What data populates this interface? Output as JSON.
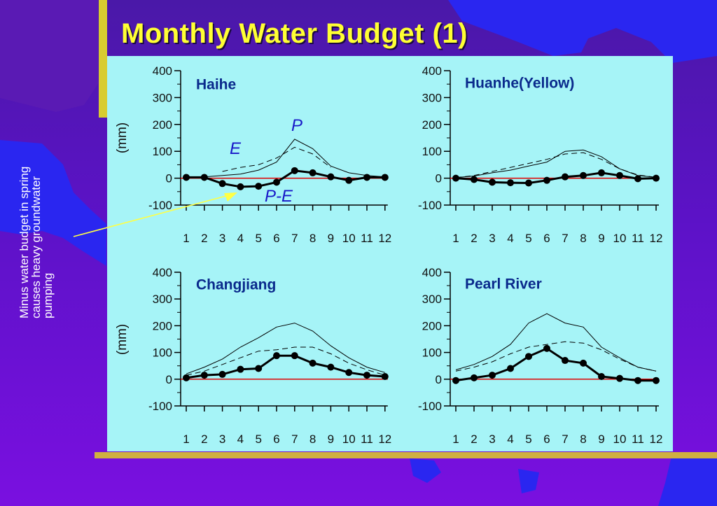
{
  "slide": {
    "title": "Monthly Water Budget (1)",
    "side_note": "Minus water budget in spring\ncauses heavy groundwater\npumping"
  },
  "colors": {
    "background": "#5d12c8",
    "chart_panel": "#a6f4f7",
    "title": "#ffff33",
    "zero_line": "#e00000",
    "annotation": "#1818c8",
    "panel_title": "#0a2a8c"
  },
  "chart_data": [
    {
      "type": "line",
      "title": "Haihe",
      "ylabel": "(mm)",
      "ylim": [
        -100,
        400
      ],
      "yticks": [
        400,
        300,
        200,
        100,
        0,
        -100
      ],
      "x": [
        1,
        2,
        3,
        4,
        5,
        6,
        7,
        8,
        9,
        10,
        11,
        12
      ],
      "annotations": [
        "P",
        "E",
        "P-E"
      ],
      "series": [
        {
          "name": "P",
          "style": "solid-thin",
          "values": [
            3,
            5,
            10,
            15,
            30,
            60,
            145,
            110,
            45,
            20,
            10,
            5
          ]
        },
        {
          "name": "E",
          "style": "dashed",
          "values": [
            null,
            null,
            25,
            40,
            50,
            75,
            115,
            90,
            40,
            null,
            null,
            null
          ]
        },
        {
          "name": "P-E",
          "style": "markers",
          "values": [
            3,
            3,
            -20,
            -32,
            -30,
            -15,
            28,
            20,
            5,
            -8,
            3,
            3
          ]
        }
      ]
    },
    {
      "type": "line",
      "title": "Huanhe(Yellow)",
      "ylim": [
        -100,
        400
      ],
      "yticks": [
        400,
        300,
        200,
        100,
        0,
        -100
      ],
      "x": [
        1,
        2,
        3,
        4,
        5,
        6,
        7,
        8,
        9,
        10,
        11,
        12
      ],
      "series": [
        {
          "style": "solid-thin",
          "values": [
            2,
            8,
            20,
            30,
            45,
            60,
            100,
            105,
            80,
            35,
            10,
            3
          ]
        },
        {
          "style": "dashed",
          "values": [
            2,
            10,
            25,
            40,
            55,
            70,
            90,
            95,
            70,
            35,
            12,
            3
          ]
        },
        {
          "style": "markers",
          "values": [
            0,
            -5,
            -15,
            -17,
            -18,
            -8,
            5,
            10,
            20,
            10,
            -2,
            0
          ]
        }
      ]
    },
    {
      "type": "line",
      "title": "Changjiang",
      "ylabel": "(mm)",
      "ylim": [
        -100,
        400
      ],
      "yticks": [
        400,
        300,
        200,
        100,
        0,
        -100
      ],
      "x": [
        1,
        2,
        3,
        4,
        5,
        6,
        7,
        8,
        9,
        10,
        11,
        12
      ],
      "series": [
        {
          "style": "solid-thin",
          "values": [
            20,
            45,
            75,
            120,
            155,
            195,
            210,
            180,
            125,
            80,
            45,
            25
          ]
        },
        {
          "style": "dashed",
          "values": [
            15,
            30,
            55,
            80,
            105,
            110,
            120,
            120,
            95,
            60,
            35,
            15
          ]
        },
        {
          "style": "markers",
          "values": [
            5,
            15,
            18,
            37,
            40,
            88,
            88,
            60,
            45,
            25,
            15,
            10
          ]
        }
      ]
    },
    {
      "type": "line",
      "title": "Pearl River",
      "ylim": [
        -100,
        400
      ],
      "yticks": [
        400,
        300,
        200,
        100,
        0,
        -100
      ],
      "x": [
        1,
        2,
        3,
        4,
        5,
        6,
        7,
        8,
        9,
        10,
        11,
        12
      ],
      "series": [
        {
          "style": "solid-thin",
          "values": [
            35,
            55,
            85,
            130,
            210,
            245,
            210,
            195,
            120,
            80,
            45,
            30
          ]
        },
        {
          "style": "dashed",
          "values": [
            30,
            45,
            65,
            95,
            120,
            130,
            140,
            135,
            110,
            75,
            45,
            30
          ]
        },
        {
          "style": "markers",
          "values": [
            -5,
            5,
            15,
            40,
            85,
            115,
            70,
            60,
            10,
            3,
            -5,
            -5
          ]
        }
      ]
    }
  ]
}
